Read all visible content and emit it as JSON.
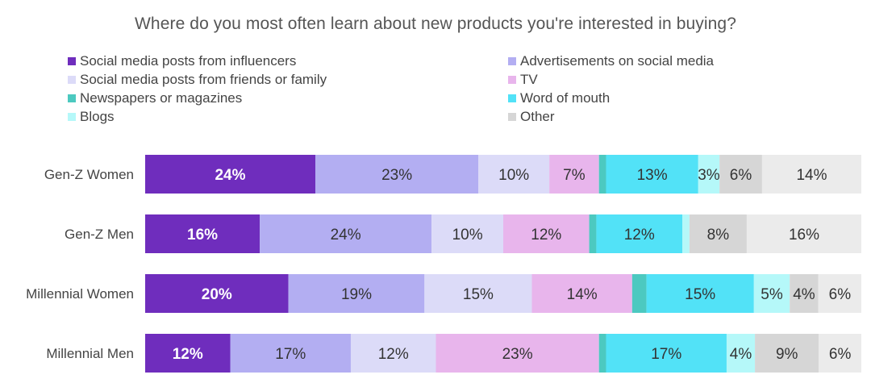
{
  "chart_data": {
    "type": "bar",
    "orientation": "horizontal",
    "stacked": true,
    "normalized": true,
    "title": "Where do you most often learn about new products you're interested in buying?",
    "legend_position": "top",
    "grid": false,
    "categories": [
      "Gen-Z Women",
      "Gen-Z Men",
      "Millennial Women",
      "Millennial Men"
    ],
    "series": [
      {
        "name": "Social media posts from influencers",
        "color": "#6F2DBD",
        "label_color": "#ffffff",
        "values": [
          24,
          16,
          20,
          12
        ],
        "labels": [
          "24%",
          "16%",
          "20%",
          "12%"
        ]
      },
      {
        "name": "Advertisements on social media",
        "color": "#B3AEF2",
        "label_color": "#333333",
        "values": [
          23,
          24,
          19,
          17
        ],
        "labels": [
          "23%",
          "24%",
          "19%",
          "17%"
        ]
      },
      {
        "name": "Social media posts from friends or family",
        "color": "#DCDBF8",
        "label_color": "#333333",
        "values": [
          10,
          10,
          15,
          12
        ],
        "labels": [
          "10%",
          "10%",
          "15%",
          "12%"
        ]
      },
      {
        "name": "TV",
        "color": "#E8B5EC",
        "label_color": "#333333",
        "values": [
          7,
          12,
          14,
          23
        ],
        "labels": [
          "7%",
          "12%",
          "14%",
          "23%"
        ]
      },
      {
        "name": "Newspapers or magazines",
        "color": "#4CC9C0",
        "label_color": "#333333",
        "values": [
          1,
          1,
          2,
          1
        ],
        "labels": [
          "",
          "",
          "",
          ""
        ]
      },
      {
        "name": "Word of mouth",
        "color": "#52E2F7",
        "label_color": "#333333",
        "values": [
          13,
          12,
          15,
          17
        ],
        "labels": [
          "13%",
          "12%",
          "15%",
          "17%"
        ]
      },
      {
        "name": "Blogs",
        "color": "#B5F8F9",
        "label_color": "#333333",
        "values": [
          3,
          1,
          5,
          4
        ],
        "labels": [
          "3%",
          "",
          "5%",
          "4%"
        ]
      },
      {
        "name": "Other",
        "color": "#D6D6D6",
        "label_color": "#333333",
        "values": [
          6,
          8,
          4,
          9
        ],
        "labels": [
          "6%",
          "8%",
          "4%",
          "9%"
        ]
      },
      {
        "name": "",
        "color": "#EBEBEB",
        "label_color": "#333333",
        "values": [
          14,
          16,
          6,
          6
        ],
        "labels": [
          "14%",
          "16%",
          "6%",
          "6%"
        ]
      }
    ],
    "legend": [
      {
        "name": "Social media posts from influencers",
        "color": "#6F2DBD"
      },
      {
        "name": "Advertisements on social media",
        "color": "#B3AEF2"
      },
      {
        "name": "Social media posts from friends or family",
        "color": "#DCDBF8"
      },
      {
        "name": "TV",
        "color": "#E8B5EC"
      },
      {
        "name": "Newspapers or magazines",
        "color": "#4CC9C0"
      },
      {
        "name": "Word of mouth",
        "color": "#52E2F7"
      },
      {
        "name": "Blogs",
        "color": "#B5F8F9"
      },
      {
        "name": "Other",
        "color": "#D6D6D6"
      }
    ]
  }
}
